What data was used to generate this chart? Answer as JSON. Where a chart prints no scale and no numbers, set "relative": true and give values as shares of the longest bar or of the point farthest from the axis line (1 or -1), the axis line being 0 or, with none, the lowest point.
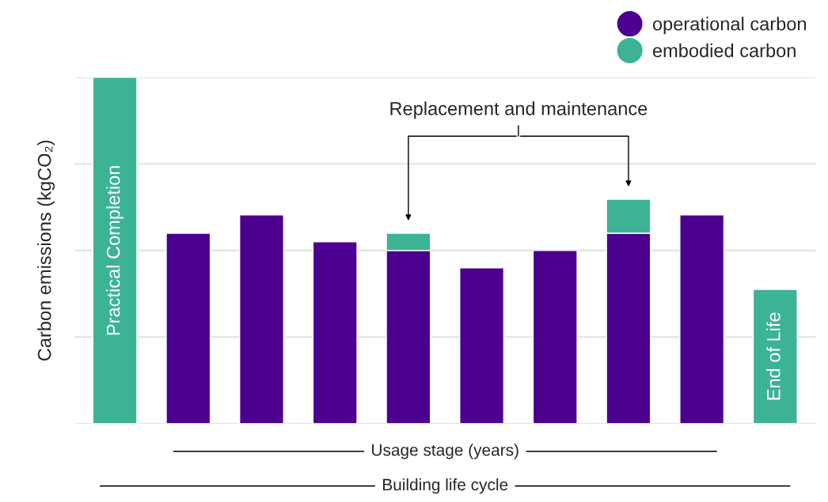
{
  "chart_data": {
    "type": "bar",
    "stacked": true,
    "relative": true,
    "ylabel": "Carbon emissions (kgCO₂)",
    "categories": [
      null,
      null,
      null,
      null,
      null,
      null,
      null,
      null,
      null,
      null
    ],
    "series": [
      {
        "name": "operational carbon",
        "color": "#4b0090",
        "values": [
          null,
          0.55,
          0.603,
          0.525,
          0.5,
          0.45,
          0.5,
          0.55,
          0.603,
          null
        ]
      },
      {
        "name": "embodied carbon",
        "color": "#3bb394",
        "values": [
          1.0,
          null,
          null,
          null,
          0.05,
          null,
          null,
          0.098,
          null,
          0.388
        ]
      }
    ],
    "annotations": [
      "Practical Completion",
      "End of Life",
      "Replacement and maintenance",
      "Usage stage (years)",
      "Building life cycle"
    ],
    "grid": "y",
    "legend": "top right"
  }
}
